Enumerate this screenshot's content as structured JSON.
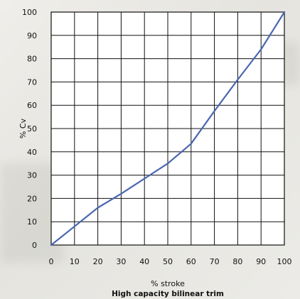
{
  "chart_data": {
    "type": "line",
    "title": "High capacity bilinear trim",
    "xlabel": "% stroke",
    "ylabel": "% Cv",
    "xlim": [
      0,
      100
    ],
    "ylim": [
      0,
      100
    ],
    "xticks": [
      0,
      10,
      20,
      30,
      40,
      50,
      60,
      70,
      80,
      90,
      100
    ],
    "yticks": [
      0,
      10,
      20,
      30,
      40,
      50,
      60,
      70,
      80,
      90,
      100
    ],
    "grid": true,
    "series": [
      {
        "color": "#4a66b0",
        "x": [
          0,
          10,
          20,
          30,
          40,
          50,
          60,
          70,
          80,
          90,
          100
        ],
        "y": [
          0,
          8,
          16,
          22,
          28.5,
          35,
          43.5,
          57.5,
          71,
          84,
          100
        ]
      }
    ]
  }
}
